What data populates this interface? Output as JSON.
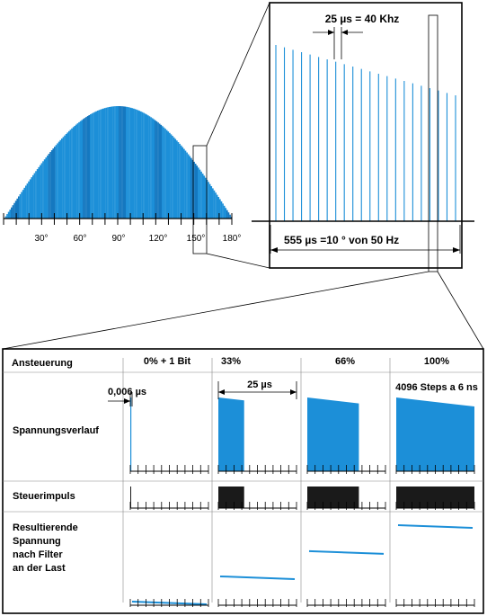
{
  "colors": {
    "accent": "#1c8fd8",
    "pulse": "#1a1a1a",
    "line": "#000000"
  },
  "sine_panel": {
    "tick_labels": [
      "30°",
      "60°",
      "90°",
      "120°",
      "150°",
      "180°"
    ]
  },
  "zoom_panel": {
    "period_annotation": "25 µs = 40 Khz",
    "span_annotation": "555 µs =10 ° von 50 Hz",
    "pulse_count": 22
  },
  "table": {
    "header_label": "Ansteuerung",
    "columns": [
      {
        "label": "0% + 1 Bit",
        "duty": 0.004,
        "note": "0,006 µs",
        "filtered_level": 0.0
      },
      {
        "label": "33%",
        "duty": 0.33,
        "note": "25 µs",
        "filtered_level": 0.33
      },
      {
        "label": "66%",
        "duty": 0.66,
        "note": "",
        "filtered_level": 0.66
      },
      {
        "label": "100%",
        "duty": 1.0,
        "note": "4096 Steps a 6 ns",
        "filtered_level": 1.0
      }
    ],
    "rows": [
      {
        "label_lines": [
          "Spannungsverlauf"
        ]
      },
      {
        "label_lines": [
          "Steuerimpuls"
        ]
      },
      {
        "label_lines": [
          "Resultierende",
          "Spannung",
          "nach Filter",
          "an der Last"
        ]
      }
    ]
  }
}
